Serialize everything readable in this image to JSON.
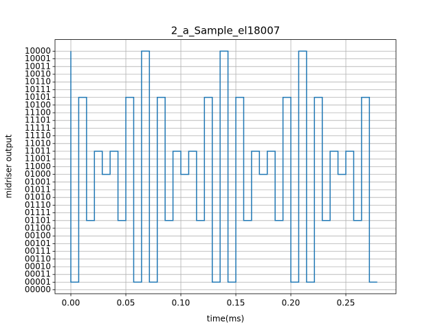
{
  "chart_data": {
    "type": "line",
    "step": "pre",
    "title": "2_a_Sample_el18007",
    "x_label": "time(ms)",
    "y_label": "midriser output",
    "x": [
      0,
      0.00714,
      0.01429,
      0.02143,
      0.02857,
      0.03571,
      0.04286,
      0.05,
      0.05714,
      0.06429,
      0.07143,
      0.07857,
      0.08571,
      0.09286,
      0.1,
      0.10714,
      0.11429,
      0.12143,
      0.12857,
      0.13571,
      0.14286,
      0.15,
      0.15714,
      0.16429,
      0.17143,
      0.17857,
      0.18571,
      0.19286,
      0.2,
      0.20714,
      0.21429,
      0.22143,
      0.22857,
      0.23571,
      0.24286,
      0.25,
      0.25714,
      0.26429,
      0.27143,
      0.27857
    ],
    "series": [
      {
        "color": "#1f77b4",
        "values": [
          31,
          1,
          25,
          9,
          18,
          15,
          18,
          9,
          25,
          1,
          31,
          1,
          25,
          9,
          18,
          15,
          18,
          9,
          25,
          1,
          31,
          1,
          25,
          9,
          18,
          15,
          18,
          9,
          25,
          1,
          31,
          1,
          25,
          9,
          18,
          15,
          18,
          9,
          25,
          1
        ]
      }
    ],
    "xlim": [
      -0.0144,
      0.2956
    ],
    "xticks": [
      {
        "value": 0,
        "label": "0.00"
      },
      0.05,
      {
        "value": 0.1,
        "label": "0.10"
      },
      0.15,
      {
        "value": 0.2,
        "label": "0.20"
      },
      0.25
    ],
    "ylim": [
      -0.5,
      32.5
    ],
    "yticks": [
      {
        "value": 0,
        "label": "00000"
      },
      {
        "value": 1,
        "label": "00001"
      },
      {
        "value": 2,
        "label": "00011"
      },
      {
        "value": 3,
        "label": "00010"
      },
      {
        "value": 4,
        "label": "00110"
      },
      {
        "value": 5,
        "label": "00111"
      },
      {
        "value": 6,
        "label": "00101"
      },
      {
        "value": 7,
        "label": "00100"
      },
      {
        "value": 8,
        "label": "01100"
      },
      {
        "value": 9,
        "label": "01101"
      },
      {
        "value": 10,
        "label": "01111"
      },
      {
        "value": 11,
        "label": "01110"
      },
      {
        "value": 12,
        "label": "01010"
      },
      {
        "value": 13,
        "label": "01011"
      },
      {
        "value": 14,
        "label": "01001"
      },
      {
        "value": 15,
        "label": "01000"
      },
      {
        "value": 16,
        "label": "11000"
      },
      {
        "value": 17,
        "label": "11001"
      },
      {
        "value": 18,
        "label": "11011"
      },
      {
        "value": 19,
        "label": "11010"
      },
      {
        "value": 20,
        "label": "11110"
      },
      {
        "value": 21,
        "label": "11111"
      },
      {
        "value": 22,
        "label": "11101"
      },
      {
        "value": 23,
        "label": "11100"
      },
      {
        "value": 24,
        "label": "10100"
      },
      {
        "value": 25,
        "label": "10101"
      },
      {
        "value": 26,
        "label": "10111"
      },
      {
        "value": 27,
        "label": "10110"
      },
      {
        "value": 28,
        "label": "10010"
      },
      {
        "value": 29,
        "label": "10011"
      },
      {
        "value": 30,
        "label": "10001"
      },
      {
        "value": 31,
        "label": "10000"
      }
    ],
    "grid": true
  }
}
